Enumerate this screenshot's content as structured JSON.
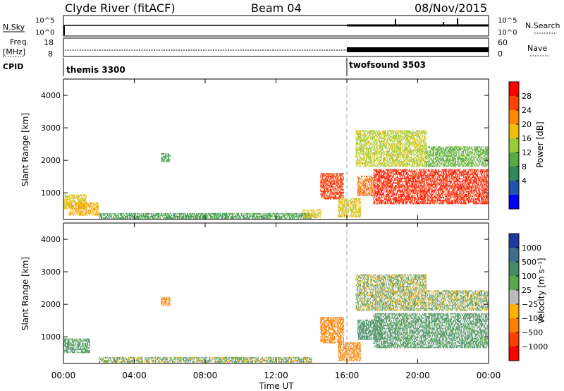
{
  "header": {
    "station": "Clyde River (fitACF)",
    "beam": "Beam 04",
    "date": "08/Nov/2015"
  },
  "status_panels": {
    "nsky_label": "N.Sky",
    "nsearch_label": "N.Search",
    "nsky_ticks": [
      "10^5",
      "10^0"
    ],
    "nsearch_ticks": [
      "10^5",
      "10^0"
    ],
    "freq_label_top": "Freq.",
    "freq_label_unit": "[MHz]",
    "freq_ticks": [
      "18",
      "8"
    ],
    "nave_label": "Nave",
    "nave_ticks": [
      "60",
      "0"
    ],
    "cpid_label": "CPID",
    "cpid_1": "themis 3300",
    "cpid_2": "twofsound 3503"
  },
  "power_panel": {
    "ylabel": "Slant Range [km]",
    "yticks": [
      "4000",
      "3000",
      "2000",
      "1000"
    ],
    "colorbar_label": "Power [dB]",
    "colorbar_ticks": [
      "28",
      "24",
      "20",
      "16",
      "12",
      "8",
      "4"
    ],
    "colorbar_colors": [
      "#ff0000",
      "#ff4400",
      "#ff8800",
      "#f0c000",
      "#99cc33",
      "#55aa44",
      "#2e8b57",
      "#2255aa",
      "#0000ff"
    ]
  },
  "velocity_panel": {
    "ylabel": "Slant Range [km]",
    "yticks": [
      "4000",
      "3000",
      "2000",
      "1000"
    ],
    "colorbar_label": "Velocity [m s⁻¹]",
    "colorbar_ticks": [
      "1000",
      "500",
      "100",
      "25",
      "−25",
      "−100",
      "−500",
      "−1000"
    ],
    "colorbar_colors": [
      "#1a3aa0",
      "#3e6e8c",
      "#448c66",
      "#5aa84a",
      "#bbbbbb",
      "#ffb000",
      "#ff8000",
      "#ff4000",
      "#ff0000"
    ]
  },
  "xaxis": {
    "ticks": [
      "00:00",
      "04:00",
      "08:00",
      "12:00",
      "16:00",
      "20:00",
      "00:00"
    ],
    "label": "Time UT"
  },
  "chart_data": {
    "type": "heatmap",
    "x_range_hours": [
      0,
      24
    ],
    "y_range_km": [
      180,
      4500
    ],
    "cpid_change_hour": 16.0,
    "power_regions": [
      {
        "t0": 0.0,
        "t1": 1.3,
        "r0": 500,
        "r1": 950,
        "dB": 18
      },
      {
        "t0": 0.3,
        "t1": 2.0,
        "r0": 300,
        "r1": 700,
        "dB": 20
      },
      {
        "t0": 2.0,
        "t1": 14.0,
        "r0": 200,
        "r1": 380,
        "dB": 10
      },
      {
        "t0": 5.5,
        "t1": 6.0,
        "r0": 1950,
        "r1": 2200,
        "dB": 10
      },
      {
        "t0": 13.5,
        "t1": 14.5,
        "r0": 220,
        "r1": 450,
        "dB": 18
      },
      {
        "t0": 14.5,
        "t1": 15.8,
        "r0": 800,
        "r1": 1600,
        "dB": 27
      },
      {
        "t0": 15.5,
        "t1": 16.8,
        "r0": 250,
        "r1": 800,
        "dB": 18
      },
      {
        "t0": 16.6,
        "t1": 17.5,
        "r0": 900,
        "r1": 1500,
        "dB": 24
      },
      {
        "t0": 17.5,
        "t1": 24.0,
        "r0": 650,
        "r1": 1700,
        "dB": 28
      },
      {
        "t0": 16.5,
        "t1": 20.5,
        "r0": 1800,
        "r1": 2900,
        "dB": 16
      },
      {
        "t0": 20.5,
        "t1": 24.0,
        "r0": 1800,
        "r1": 2400,
        "dB": 12
      }
    ],
    "velocity_regions": [
      {
        "t0": 0.0,
        "t1": 1.5,
        "r0": 500,
        "r1": 950,
        "v": 150
      },
      {
        "t0": 2.0,
        "t1": 14.0,
        "r0": 200,
        "r1": 380,
        "v": 40
      },
      {
        "t0": 5.5,
        "t1": 6.0,
        "r0": 1950,
        "r1": 2200,
        "v": -300
      },
      {
        "t0": 14.5,
        "t1": 15.8,
        "r0": 800,
        "r1": 1600,
        "v": -300
      },
      {
        "t0": 15.5,
        "t1": 16.8,
        "r0": 250,
        "r1": 800,
        "v": -200
      },
      {
        "t0": 16.6,
        "t1": 18.0,
        "r0": 900,
        "r1": 1500,
        "v": 200
      },
      {
        "t0": 17.5,
        "t1": 24.0,
        "r0": 650,
        "r1": 1700,
        "v": 120
      },
      {
        "t0": 16.5,
        "t1": 20.5,
        "r0": 1800,
        "r1": 2900,
        "v": 30
      },
      {
        "t0": 20.5,
        "t1": 24.0,
        "r0": 1800,
        "r1": 2400,
        "v": 30
      }
    ]
  }
}
